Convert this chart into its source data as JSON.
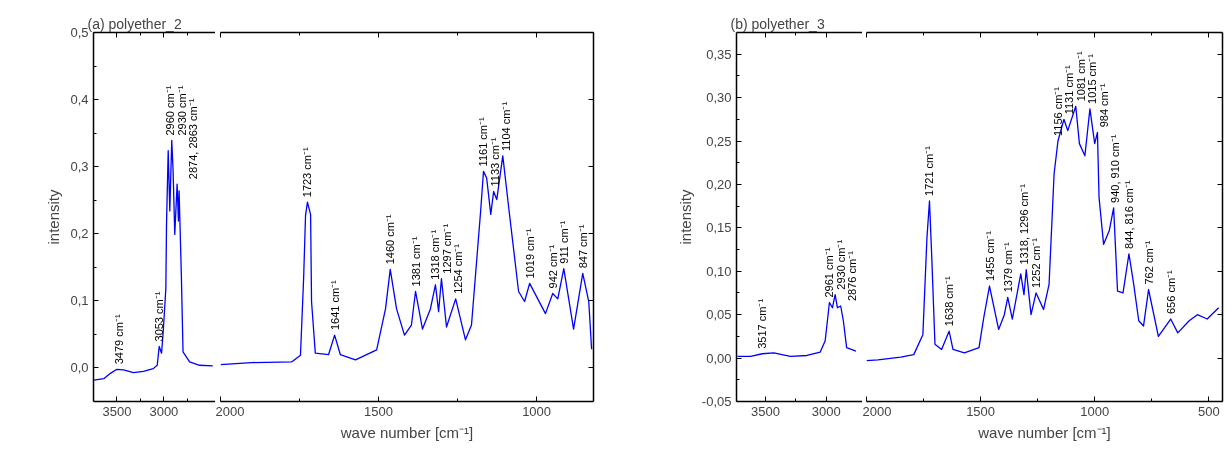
{
  "chart_data": [
    {
      "type": "line",
      "title": "(a) polyether_2",
      "ylabel": "intensity",
      "grid": false,
      "xlim": [
        3750,
        2450
      ],
      "xticks": [
        3500,
        3000,
        {
          "value": 3250,
          "label": null
        },
        {
          "value": 2750,
          "label": null
        }
      ],
      "ylim": [
        -0.05,
        0.5
      ],
      "yticks": [
        {
          "value": 0,
          "label": "0,0"
        },
        {
          "value": 0.1,
          "label": "0,1"
        },
        {
          "value": 0.2,
          "label": "0,2"
        },
        {
          "value": 0.3,
          "label": "0,3"
        },
        {
          "value": 0.4,
          "label": "0,4"
        },
        {
          "value": 0.5,
          "label": "0,5"
        },
        {
          "value": 0.05,
          "label": null
        },
        {
          "value": 0.15,
          "label": null
        },
        {
          "value": 0.25,
          "label": null
        },
        {
          "value": 0.35,
          "label": null
        },
        {
          "value": 0.45,
          "label": null
        }
      ],
      "series": [
        {
          "color": "#0000ff",
          "x": [
            3746,
            3641,
            3570,
            3500,
            3430,
            3324,
            3218,
            3113,
            3071,
            3050,
            3025,
            3007,
            2979,
            2972,
            2954,
            2937,
            2916,
            2902,
            2884,
            2859,
            2845,
            2838,
            2814,
            2796,
            2726,
            2620,
            2479
          ],
          "values": [
            -0.018,
            -0.016,
            -0.008,
            -0.002,
            -0.003,
            -0.007,
            -0.005,
            -0.001,
            0.004,
            0.032,
            0.022,
            0.054,
            0.119,
            0.214,
            0.324,
            0.234,
            0.339,
            0.294,
            0.199,
            0.274,
            0.219,
            0.264,
            0.139,
            0.024,
            0.009,
            0.004,
            0.003
          ]
        }
      ],
      "annotations": [
        {
          "text": "3479 cm⁻¹",
          "x": 3479,
          "y": -0.002
        },
        {
          "text": "3053 cm⁻¹",
          "x": 3053,
          "y": 0.032
        },
        {
          "text": "2960 cm⁻¹",
          "x": 2960,
          "y": 0.324
        },
        {
          "text": "2930 cm⁻¹",
          "x": 2930,
          "y": 0.339
        },
        {
          "text": "2874, 2863 cm⁻¹",
          "x": 2868,
          "y": 0.274
        }
      ]
    },
    {
      "type": "line",
      "xlabel": "wave number [cm⁻¹]",
      "grid": false,
      "tick_labels": "x",
      "xlim": [
        2000,
        820
      ],
      "xticks": [
        2000,
        1500,
        1000,
        {
          "value": 1750,
          "label": null
        },
        {
          "value": 1250,
          "label": null
        }
      ],
      "ylim": [
        -0.05,
        0.5
      ],
      "yticks": [
        0,
        0.1,
        0.2,
        0.3,
        0.4,
        0.5
      ],
      "series": [
        {
          "color": "#0000ff",
          "x": [
            2000,
            1902,
            1775,
            1747,
            1737,
            1731,
            1725,
            1715,
            1712,
            1700,
            1658,
            1639,
            1621,
            1573,
            1506,
            1478,
            1463,
            1443,
            1418,
            1396,
            1383,
            1361,
            1336,
            1320,
            1310,
            1301,
            1285,
            1256,
            1225,
            1206,
            1177,
            1168,
            1158,
            1145,
            1136,
            1126,
            1107,
            1088,
            1057,
            1038,
            1022,
            1003,
            972,
            949,
            933,
            914,
            883,
            854,
            835,
            826
          ],
          "values": [
            0.005,
            0.008,
            0.009,
            0.019,
            0.134,
            0.227,
            0.247,
            0.229,
            0.099,
            0.022,
            0.02,
            0.049,
            0.02,
            0.012,
            0.027,
            0.088,
            0.147,
            0.088,
            0.049,
            0.064,
            0.114,
            0.058,
            0.088,
            0.124,
            0.084,
            0.133,
            0.061,
            0.103,
            0.042,
            0.064,
            0.234,
            0.293,
            0.283,
            0.229,
            0.263,
            0.251,
            0.316,
            0.238,
            0.114,
            0.099,
            0.126,
            0.109,
            0.081,
            0.111,
            0.103,
            0.148,
            0.058,
            0.141,
            0.099,
            0.028
          ]
        }
      ],
      "annotations": [
        {
          "text": "1723 cm⁻¹",
          "x": 1725,
          "y": 0.247
        },
        {
          "text": "1641 cm⁻¹",
          "x": 1639,
          "y": 0.049
        },
        {
          "text": "1460 cm⁻¹",
          "x": 1463,
          "y": 0.147
        },
        {
          "text": "1381 cm⁻¹",
          "x": 1383,
          "y": 0.114
        },
        {
          "text": "1318 cm⁻¹",
          "x": 1320,
          "y": 0.124
        },
        {
          "text": "1297 cm⁻¹",
          "x": 1301,
          "y": 0.133
        },
        {
          "text": "1254 cm⁻¹",
          "x": 1256,
          "y": 0.103
        },
        {
          "text": "1161 cm⁻¹",
          "x": 1168,
          "y": 0.293
        },
        {
          "text": "1133 cm⁻¹",
          "x": 1136,
          "y": 0.263
        },
        {
          "text": "1104 cm⁻¹",
          "x": 1107,
          "y": 0.316
        },
        {
          "text": "1019 cm⁻¹",
          "x": 1022,
          "y": 0.126
        },
        {
          "text": "942 cm⁻¹",
          "x": 949,
          "y": 0.111
        },
        {
          "text": "911 cm⁻¹",
          "x": 914,
          "y": 0.148
        },
        {
          "text": "847 cm⁻¹",
          "x": 854,
          "y": 0.141
        }
      ]
    },
    {
      "type": "line",
      "title": "(b) polyether_3",
      "ylabel": "intensity",
      "grid": false,
      "xlim": [
        3740,
        2700
      ],
      "xticks": [
        3500,
        3000,
        {
          "value": 3250,
          "label": null
        }
      ],
      "ylim": [
        -0.05,
        0.375
      ],
      "yticks": [
        {
          "value": -0.05,
          "label": "-0,05"
        },
        {
          "value": 0,
          "label": "0,00"
        },
        {
          "value": 0.05,
          "label": "0,05"
        },
        {
          "value": 0.1,
          "label": "0,10"
        },
        {
          "value": 0.15,
          "label": "0,15"
        },
        {
          "value": 0.2,
          "label": "0,20"
        },
        {
          "value": 0.25,
          "label": "0,25"
        },
        {
          "value": 0.3,
          "label": "0,30"
        },
        {
          "value": 0.35,
          "label": "0,35"
        },
        {
          "value": -0.025,
          "label": null
        },
        {
          "value": 0.025,
          "label": null
        },
        {
          "value": 0.075,
          "label": null
        },
        {
          "value": 0.125,
          "label": null
        },
        {
          "value": 0.175,
          "label": null
        },
        {
          "value": 0.225,
          "label": null
        },
        {
          "value": 0.275,
          "label": null
        },
        {
          "value": 0.325,
          "label": null
        }
      ],
      "series": [
        {
          "color": "#0000ff",
          "x": [
            3732,
            3623,
            3527,
            3432,
            3295,
            3158,
            3049,
            3008,
            2973,
            2948,
            2926,
            2907,
            2880,
            2858,
            2831,
            2754
          ],
          "values": [
            0.002,
            0.002,
            0.005,
            0.006,
            0.002,
            0.003,
            0.007,
            0.02,
            0.064,
            0.058,
            0.073,
            0.058,
            0.06,
            0.043,
            0.012,
            0.008
          ]
        }
      ],
      "annotations": [
        {
          "text": "3517 cm⁻¹",
          "x": 3527,
          "y": 0.005
        },
        {
          "text": "2961 cm⁻¹",
          "x": 2973,
          "y": 0.064
        },
        {
          "text": "2930 cm⁻¹",
          "x": 2926,
          "y": 0.073
        },
        {
          "text": "2876 cm⁻¹",
          "x": 2880,
          "y": 0.06
        }
      ]
    },
    {
      "type": "line",
      "xlabel": "wave number [cm⁻¹]",
      "grid": false,
      "tick_labels": "x",
      "xlim": [
        2000,
        440
      ],
      "xticks": [
        2000,
        1500,
        1000,
        500,
        {
          "value": 1750,
          "label": null
        },
        {
          "value": 1250,
          "label": null
        },
        {
          "value": 750,
          "label": null
        }
      ],
      "ylim": [
        -0.05,
        0.375
      ],
      "yticks": [
        -0.05,
        0,
        0.05,
        0.1,
        0.15,
        0.2,
        0.25,
        0.3,
        0.35
      ],
      "series": [
        {
          "color": "#0000ff",
          "x": [
            2000,
            1950,
            1850,
            1793,
            1753,
            1735,
            1724,
            1714,
            1700,
            1671,
            1638,
            1621,
            1571,
            1507,
            1486,
            1461,
            1421,
            1396,
            1381,
            1361,
            1324,
            1310,
            1300,
            1279,
            1257,
            1224,
            1200,
            1178,
            1161,
            1135,
            1118,
            1083,
            1067,
            1043,
            1021,
            1000,
            988,
            981,
            961,
            936,
            917,
            900,
            876,
            850,
            829,
            807,
            786,
            764,
            721,
            667,
            636,
            586,
            550,
            507,
            457
          ],
          "values": [
            -0.003,
            -0.002,
            0.001,
            0.004,
            0.027,
            0.139,
            0.181,
            0.116,
            0.016,
            0.01,
            0.031,
            0.01,
            0.006,
            0.012,
            0.047,
            0.083,
            0.033,
            0.05,
            0.07,
            0.045,
            0.097,
            0.073,
            0.102,
            0.05,
            0.075,
            0.056,
            0.085,
            0.212,
            0.25,
            0.275,
            0.262,
            0.29,
            0.247,
            0.233,
            0.287,
            0.247,
            0.26,
            0.185,
            0.131,
            0.147,
            0.173,
            0.077,
            0.075,
            0.12,
            0.085,
            0.043,
            0.037,
            0.079,
            0.025,
            0.045,
            0.029,
            0.043,
            0.05,
            0.045,
            0.058
          ]
        }
      ],
      "annotations": [
        {
          "text": "1721 cm⁻¹",
          "x": 1724,
          "y": 0.181
        },
        {
          "text": "1638 cm⁻¹",
          "x": 1638,
          "y": 0.031
        },
        {
          "text": "1455 cm⁻¹",
          "x": 1461,
          "y": 0.083
        },
        {
          "text": "1379 cm⁻¹",
          "x": 1381,
          "y": 0.07
        },
        {
          "text": "1318, 1296 cm⁻¹",
          "x": 1310,
          "y": 0.102
        },
        {
          "text": "1252 cm⁻¹",
          "x": 1257,
          "y": 0.075
        },
        {
          "text": "1156 cm⁻¹",
          "x": 1161,
          "y": 0.25
        },
        {
          "text": "1131 cm⁻¹",
          "x": 1135,
          "y": 0.275
        },
        {
          "text": "1081 cm⁻¹",
          "x": 1083,
          "y": 0.29
        },
        {
          "text": "1015 cm⁻¹",
          "x": 1021,
          "y": 0.287
        },
        {
          "text": "984 cm⁻¹",
          "x": 988,
          "y": 0.26
        },
        {
          "text": "940, 910 cm⁻¹",
          "x": 917,
          "y": 0.173
        },
        {
          "text": "844, 816 cm⁻¹",
          "x": 850,
          "y": 0.12
        },
        {
          "text": "762 cm⁻¹",
          "x": 764,
          "y": 0.079
        },
        {
          "text": "656 cm⁻¹",
          "x": 667,
          "y": 0.045
        }
      ]
    }
  ]
}
